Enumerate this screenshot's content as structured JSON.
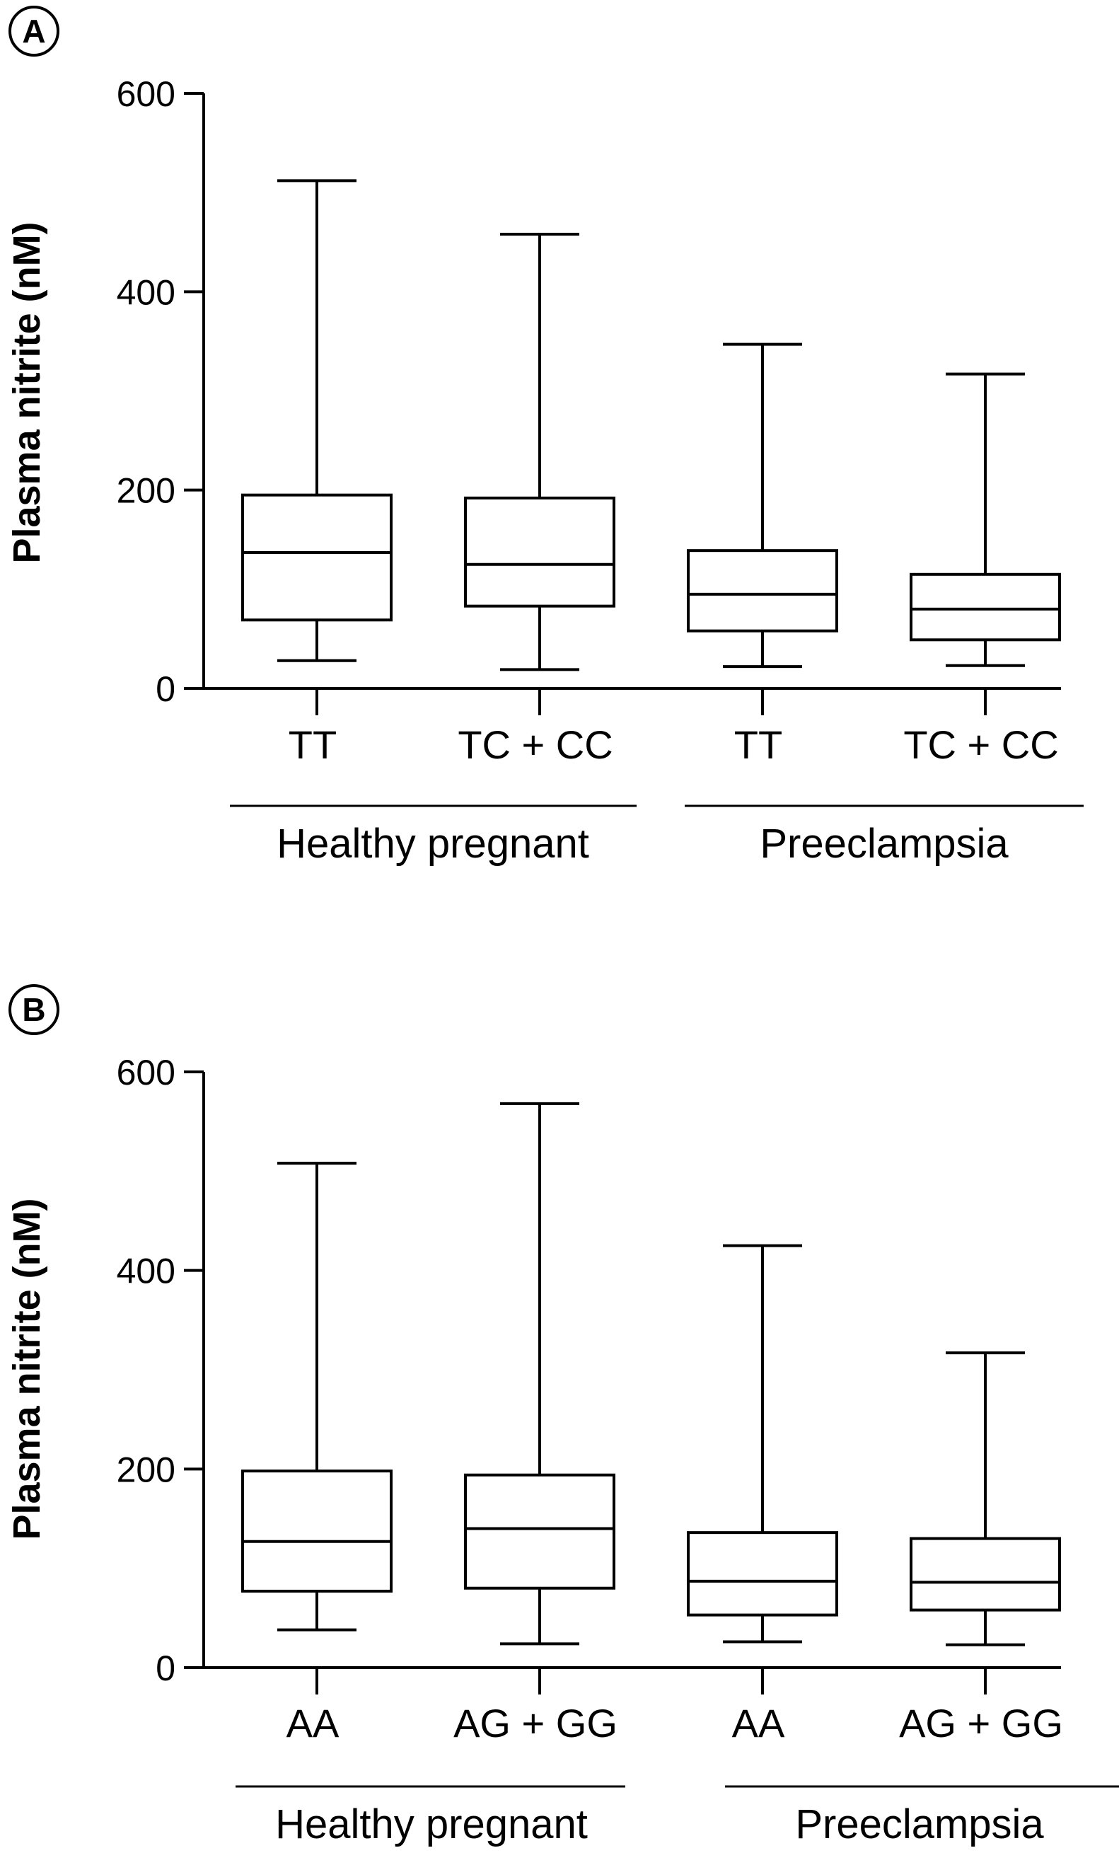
{
  "chart_data": [
    {
      "type": "box",
      "panel_label": "A",
      "ylabel": "Plasma nitrite (nM)",
      "ylim": [
        0,
        600
      ],
      "yticks": [
        0,
        200,
        400,
        600
      ],
      "ytick_labels": [
        "0",
        "200",
        "400",
        "600"
      ],
      "categories": [
        "TT",
        "TC + CC",
        "TT",
        "TC + CC"
      ],
      "groups": [
        {
          "label": "Healthy pregnant",
          "members": [
            0,
            1
          ]
        },
        {
          "label": "Preeclampsia",
          "members": [
            2,
            3
          ]
        }
      ],
      "boxes": [
        {
          "min": 28,
          "q1": 69,
          "median": 137,
          "q3": 195,
          "max": 512
        },
        {
          "min": 19,
          "q1": 83,
          "median": 125,
          "q3": 192,
          "max": 458
        },
        {
          "min": 22,
          "q1": 58,
          "median": 95,
          "q3": 139,
          "max": 347
        },
        {
          "min": 23,
          "q1": 49,
          "median": 80,
          "q3": 115,
          "max": 317
        }
      ]
    },
    {
      "type": "box",
      "panel_label": "B",
      "ylabel": "Plasma nitrite (nM)",
      "ylim": [
        0,
        600
      ],
      "yticks": [
        0,
        200,
        400,
        600
      ],
      "ytick_labels": [
        "0",
        "200",
        "400",
        "600"
      ],
      "categories": [
        "AA",
        "AG + GG",
        "AA",
        "AG + GG"
      ],
      "groups": [
        {
          "label": "Healthy pregnant",
          "members": [
            0,
            1
          ]
        },
        {
          "label": "Preeclampsia",
          "members": [
            2,
            3
          ]
        }
      ],
      "boxes": [
        {
          "min": 38,
          "q1": 77,
          "median": 127,
          "q3": 198,
          "max": 508
        },
        {
          "min": 24,
          "q1": 80,
          "median": 140,
          "q3": 194,
          "max": 568
        },
        {
          "min": 26,
          "q1": 53,
          "median": 87,
          "q3": 136,
          "max": 425
        },
        {
          "min": 23,
          "q1": 58,
          "median": 86,
          "q3": 130,
          "max": 317
        }
      ]
    }
  ]
}
